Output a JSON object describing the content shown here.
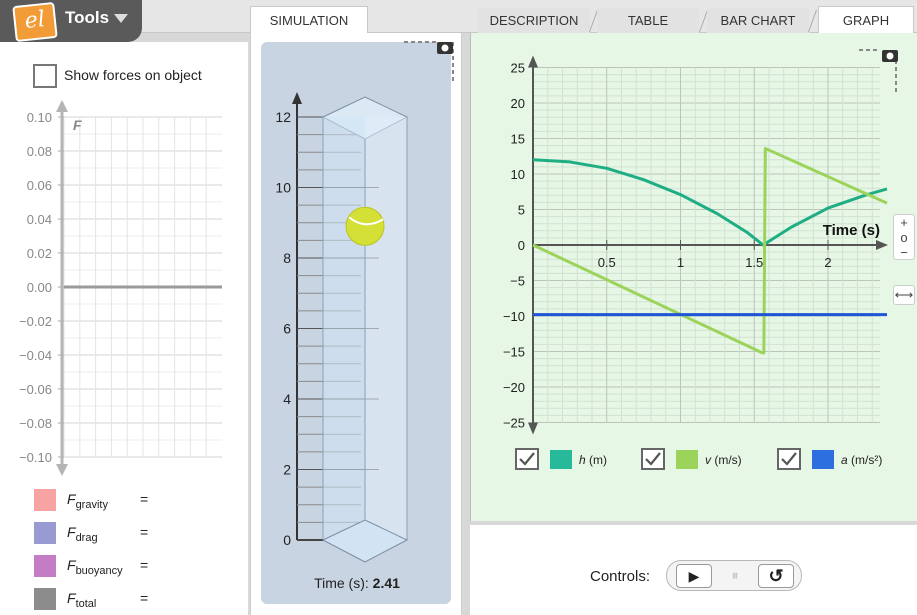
{
  "tools": {
    "logo_text": "el",
    "label": "Tools"
  },
  "tabs": {
    "simulation": "SIMULATION",
    "description": "DESCRIPTION",
    "table": "TABLE",
    "bar_chart": "BAR CHART",
    "graph": "GRAPH"
  },
  "forces": {
    "show_forces_label": "Show forces on object",
    "show_forces_checked": false,
    "axis_label": "F",
    "y_ticks": [
      "0.10",
      "0.08",
      "0.06",
      "0.04",
      "0.02",
      "0.00",
      "−0.02",
      "−0.04",
      "−0.06",
      "−0.08",
      "−0.10"
    ],
    "legend": [
      {
        "symbol": "F",
        "sub": "gravity",
        "eq": "=",
        "color": "#f7a3a3"
      },
      {
        "symbol": "F",
        "sub": "drag",
        "eq": "=",
        "color": "#9a9ad2"
      },
      {
        "symbol": "F",
        "sub": "buoyancy",
        "eq": "=",
        "color": "#c47cc4"
      },
      {
        "symbol": "F",
        "sub": "total",
        "eq": "=",
        "color": "#8c8c8c"
      }
    ]
  },
  "simulation": {
    "ruler_ticks": [
      "12",
      "10",
      "8",
      "6",
      "4",
      "2",
      "0"
    ],
    "time_label": "Time (s): ",
    "time_value": "2.41",
    "ball_height_m": 8.9
  },
  "graph": {
    "x_title": "Time (s)",
    "x_ticks": [
      "0.5",
      "1",
      "1.5",
      "2"
    ],
    "y_ticks": [
      "25",
      "20",
      "15",
      "10",
      "5",
      "0",
      "−5",
      "−10",
      "−15",
      "−20",
      "−25"
    ],
    "zoom": {
      "plus": "+",
      "reset": "o",
      "minus": "−",
      "fit": "⟷"
    },
    "legend": [
      {
        "label_var": "h",
        "label_unit": " (m)",
        "checked": true,
        "color": "#26b99a"
      },
      {
        "label_var": "v",
        "label_unit": " (m/s)",
        "checked": true,
        "color": "#9cd35a"
      },
      {
        "label_var": "a",
        "label_unit": " (m/s²)",
        "checked": true,
        "color": "#2e6fe0"
      }
    ]
  },
  "chart_data": {
    "type": "line",
    "xlabel": "Time (s)",
    "ylabel": "",
    "xlim": [
      0,
      2.4
    ],
    "ylim": [
      -25,
      25
    ],
    "grid": true,
    "legend_position": "bottom",
    "series": [
      {
        "name": "h (m)",
        "color": "#1fae84",
        "x": [
          0,
          0.25,
          0.5,
          0.75,
          1.0,
          1.25,
          1.45,
          1.56,
          1.75,
          2.0,
          2.25,
          2.4
        ],
        "y": [
          12,
          11.7,
          10.8,
          9.2,
          7.1,
          4.4,
          1.8,
          0,
          2.5,
          5.2,
          7.0,
          7.9
        ]
      },
      {
        "name": "v (m/s)",
        "color": "#9cd35a",
        "x": [
          0,
          1.555,
          1.565,
          1.575,
          2.4
        ],
        "y": [
          0,
          -15.2,
          -15.2,
          13.6,
          5.9
        ]
      },
      {
        "name": "a (m/s²)",
        "color": "#1f55d6",
        "x": [
          0,
          2.4
        ],
        "y": [
          -9.8,
          -9.8
        ]
      }
    ]
  },
  "controls": {
    "label": "Controls:",
    "play": "▶",
    "pause": "⏸",
    "reset": "↺"
  }
}
